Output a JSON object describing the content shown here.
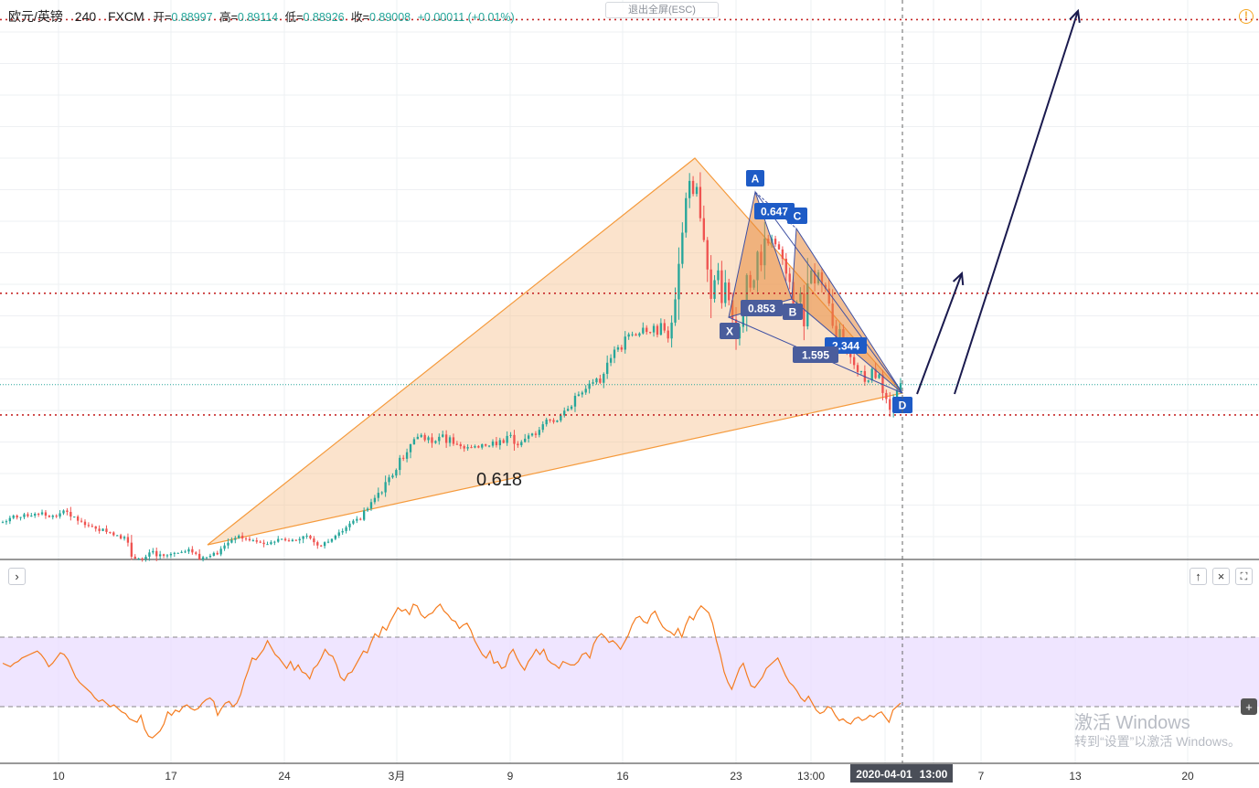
{
  "header": {
    "symbol": "欧元/英镑",
    "interval": "240",
    "exchange": "FXCM",
    "open_label": "开=",
    "open_value": "0.88997",
    "high_label": "高=",
    "high_value": "0.89114",
    "low_label": "低=",
    "low_value": "0.88926",
    "close_label": "收=",
    "close_value": "0.89008",
    "change_value": "+0.00011 (+0.01%)"
  },
  "exit_fullscreen_label": "退出全屏(ESC)",
  "alert_icon": "exclamation-circle-icon",
  "buttons": {
    "collapse": "›",
    "move_up": "↑",
    "close": "×",
    "maximize": "⛶",
    "add": "+"
  },
  "watermark": {
    "line1": "激活 Windows",
    "line2": "转到“设置”以激活 Windows。"
  },
  "colors": {
    "up": "#26a69a",
    "down": "#ef5350",
    "pattern_fill": "#f7c18d",
    "pattern_line": "#f59a3c",
    "harmonic_fill": "#e88a3c",
    "harmonic_line": "#3f51a3",
    "label_blue": "#1e5bc6",
    "label_slate": "#4a5d9c",
    "level_red": "#c62828",
    "current_price_line": "#26a69a",
    "rsi_line": "#f57c1f",
    "rsi_band": "#eadcff",
    "arrow": "#1a1a4e"
  },
  "chart_data": {
    "type": "candlestick",
    "price_axis": "hidden",
    "x_ticks": [
      "10",
      "17",
      "24",
      "3月",
      "9",
      "16",
      "23",
      "13:00",
      "2020-04-01",
      "13:00",
      "7",
      "13",
      "20"
    ],
    "crosshair_label_date": "2020-04-01",
    "crosshair_label_time": "13:00",
    "price_range": [
      0.84,
      0.96
    ],
    "close_series": [
      0.848,
      0.8482,
      0.8489,
      0.8494,
      0.849,
      0.8491,
      0.8497,
      0.8493,
      0.8494,
      0.8498,
      0.8497,
      0.8501,
      0.8494,
      0.8491,
      0.8494,
      0.8492,
      0.8499,
      0.8505,
      0.8502,
      0.8492,
      0.8492,
      0.8483,
      0.8481,
      0.8474,
      0.8472,
      0.8471,
      0.8466,
      0.8461,
      0.8466,
      0.8459,
      0.8458,
      0.8452,
      0.8452,
      0.8445,
      0.8448,
      0.8436,
      0.8406,
      0.8402,
      0.8402,
      0.8401,
      0.8406,
      0.8415,
      0.8418,
      0.8407,
      0.8411,
      0.8408,
      0.8409,
      0.8412,
      0.8414,
      0.8414,
      0.8416,
      0.8417,
      0.8422,
      0.8415,
      0.8412,
      0.84,
      0.8405,
      0.8405,
      0.8408,
      0.8414,
      0.8411,
      0.8423,
      0.843,
      0.8436,
      0.8442,
      0.8446,
      0.8451,
      0.8445,
      0.8444,
      0.8441,
      0.8441,
      0.8438,
      0.8436,
      0.8433,
      0.8433,
      0.8437,
      0.8438,
      0.8444,
      0.8444,
      0.8441,
      0.8439,
      0.8442,
      0.8441,
      0.8444,
      0.845,
      0.8451,
      0.8445,
      0.8437,
      0.843,
      0.8429,
      0.8437,
      0.8438,
      0.8444,
      0.8451,
      0.8458,
      0.8461,
      0.8469,
      0.8477,
      0.8483,
      0.8487,
      0.8485,
      0.8505,
      0.8509,
      0.8523,
      0.8532,
      0.8543,
      0.8544,
      0.8566,
      0.8576,
      0.858,
      0.8592,
      0.8618,
      0.8616,
      0.863,
      0.8647,
      0.8658,
      0.8663,
      0.8667,
      0.8656,
      0.8662,
      0.865,
      0.8654,
      0.8663,
      0.8668,
      0.865,
      0.8662,
      0.8648,
      0.8647,
      0.8643,
      0.8638,
      0.8641,
      0.864,
      0.8643,
      0.864,
      0.8647,
      0.8644,
      0.8644,
      0.8653,
      0.8645,
      0.8656,
      0.865,
      0.8665,
      0.8667,
      0.8648,
      0.8645,
      0.8652,
      0.8659,
      0.8666,
      0.867,
      0.8667,
      0.8678,
      0.869,
      0.87,
      0.8699,
      0.8695,
      0.8698,
      0.8709,
      0.8719,
      0.8723,
      0.8728,
      0.8751,
      0.8754,
      0.8758,
      0.8766,
      0.8777,
      0.878,
      0.8788,
      0.8779,
      0.8798,
      0.8822,
      0.8832,
      0.885,
      0.8855,
      0.885,
      0.8878,
      0.8883,
      0.8883,
      0.888,
      0.8885,
      0.8897,
      0.8888,
      0.8887,
      0.8901,
      0.8882,
      0.8907,
      0.8891,
      0.8874,
      0.8908,
      0.8958,
      0.9034,
      0.9101,
      0.9175,
      0.9212,
      0.9184,
      0.9199,
      0.9132,
      0.9085,
      0.9022,
      0.8959,
      0.8999,
      0.902,
      0.895,
      0.8994,
      0.8956,
      0.8915,
      0.8874,
      0.8899,
      0.893,
      0.901,
      0.8983,
      0.8999,
      0.906,
      0.9031,
      0.9088,
      0.9078,
      0.9088,
      0.9076,
      0.9065,
      0.9045,
      0.9013,
      0.8995,
      0.8943,
      0.8952,
      0.8971,
      0.89,
      0.8992,
      0.902,
      0.8992,
      0.9016,
      0.8989,
      0.8981,
      0.8949,
      0.8901,
      0.8864,
      0.8894,
      0.8873,
      0.8851,
      0.8834,
      0.8817,
      0.8802,
      0.8804,
      0.8781,
      0.8784,
      0.8809,
      0.8789,
      0.8797,
      0.8757,
      0.8744,
      0.8721,
      0.8744,
      0.8763,
      0.8778
    ],
    "levels": [
      {
        "name": "top",
        "price": 0.9558
      },
      {
        "name": "mid",
        "price": 0.8971
      },
      {
        "name": "bottom",
        "price": 0.871
      }
    ],
    "current_price": 0.8775,
    "annotations": [
      {
        "text": "0.618"
      },
      {
        "text": "A"
      },
      {
        "text": "0.647"
      },
      {
        "text": "C"
      },
      {
        "text": "0.853"
      },
      {
        "text": "B"
      },
      {
        "text": "X"
      },
      {
        "text": "2.344"
      },
      {
        "text": "1.595"
      },
      {
        "text": "D"
      }
    ],
    "rsi": {
      "range": [
        0,
        100
      ],
      "upper": 70,
      "lower": 30,
      "values": [
        55,
        54,
        53,
        55,
        56,
        58,
        59,
        60,
        61,
        62,
        60,
        57,
        53,
        55,
        58,
        61,
        60,
        57,
        52,
        47,
        44,
        42,
        40,
        38,
        35,
        33,
        34,
        32,
        30,
        31,
        29,
        27,
        26,
        23,
        22,
        21,
        25,
        17,
        13,
        12,
        14,
        16,
        20,
        27,
        25,
        28,
        27,
        30,
        31,
        29,
        28,
        29,
        32,
        34,
        35,
        33,
        25,
        29,
        32,
        33,
        30,
        32,
        37,
        45,
        51,
        58,
        57,
        60,
        63,
        68,
        64,
        60,
        58,
        55,
        52,
        56,
        51,
        54,
        50,
        49,
        46,
        52,
        54,
        58,
        63,
        60,
        59,
        54,
        47,
        45,
        49,
        50,
        54,
        58,
        62,
        61,
        67,
        72,
        70,
        76,
        74,
        79,
        83,
        87,
        85,
        86,
        83,
        89,
        88,
        83,
        81,
        83,
        84,
        87,
        89,
        85,
        83,
        80,
        79,
        75,
        77,
        78,
        74,
        68,
        64,
        60,
        58,
        62,
        55,
        56,
        52,
        53,
        60,
        63,
        58,
        54,
        51,
        56,
        59,
        63,
        60,
        63,
        57,
        55,
        54,
        52,
        56,
        55,
        54,
        54,
        56,
        60,
        61,
        58,
        66,
        70,
        72,
        70,
        67,
        68,
        66,
        63,
        67,
        71,
        77,
        81,
        82,
        79,
        78,
        83,
        85,
        80,
        76,
        74,
        73,
        71,
        75,
        70,
        77,
        82,
        80,
        85,
        88,
        86,
        84,
        78,
        68,
        60,
        50,
        44,
        40,
        46,
        52,
        55,
        48,
        42,
        41,
        44,
        47,
        52,
        54,
        56,
        58,
        53,
        48,
        44,
        42,
        39,
        35,
        33,
        36,
        32,
        28,
        26,
        27,
        30,
        29,
        25,
        22,
        23,
        21,
        20,
        23,
        24,
        22,
        23,
        25,
        24,
        26,
        27,
        24,
        21,
        28,
        30,
        32
      ]
    }
  }
}
